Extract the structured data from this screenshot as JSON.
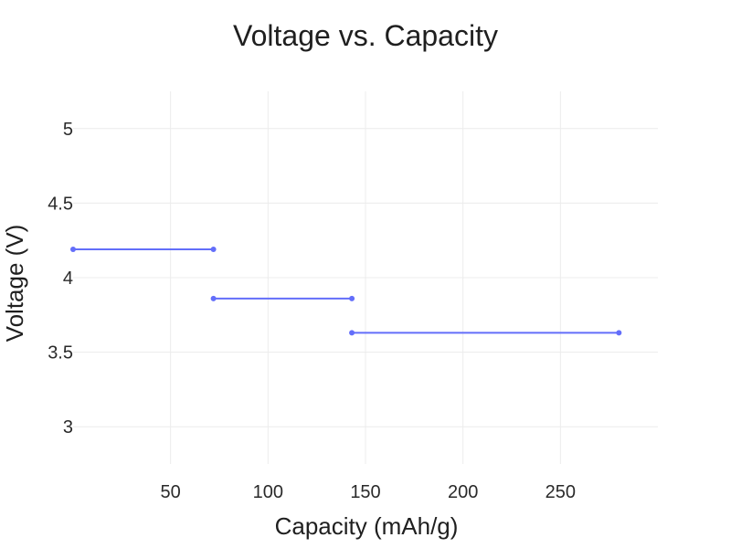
{
  "chart_data": {
    "type": "line",
    "line_shape": "step",
    "title": "Voltage vs. Capacity",
    "xlabel": "Capacity (mAh/g)",
    "ylabel": "Voltage (V)",
    "xlim": [
      0,
      300
    ],
    "ylim": [
      2.75,
      5.25
    ],
    "x_ticks": [
      50,
      100,
      150,
      200,
      250
    ],
    "y_ticks": [
      3,
      3.5,
      4,
      4.5,
      5
    ],
    "x_tick_labels": [
      "50",
      "100",
      "150",
      "200",
      "250"
    ],
    "y_tick_labels": [
      "3",
      "3.5",
      "4",
      "4.5",
      "5"
    ],
    "grid": true,
    "series": [
      {
        "name": "Voltage",
        "color": "#636efa",
        "segments": [
          {
            "x": [
              0,
              72
            ],
            "y": [
              4.19,
              4.19
            ]
          },
          {
            "x": [
              72,
              143
            ],
            "y": [
              3.86,
              3.86
            ]
          },
          {
            "x": [
              143,
              280
            ],
            "y": [
              3.63,
              3.63
            ]
          }
        ]
      }
    ]
  }
}
